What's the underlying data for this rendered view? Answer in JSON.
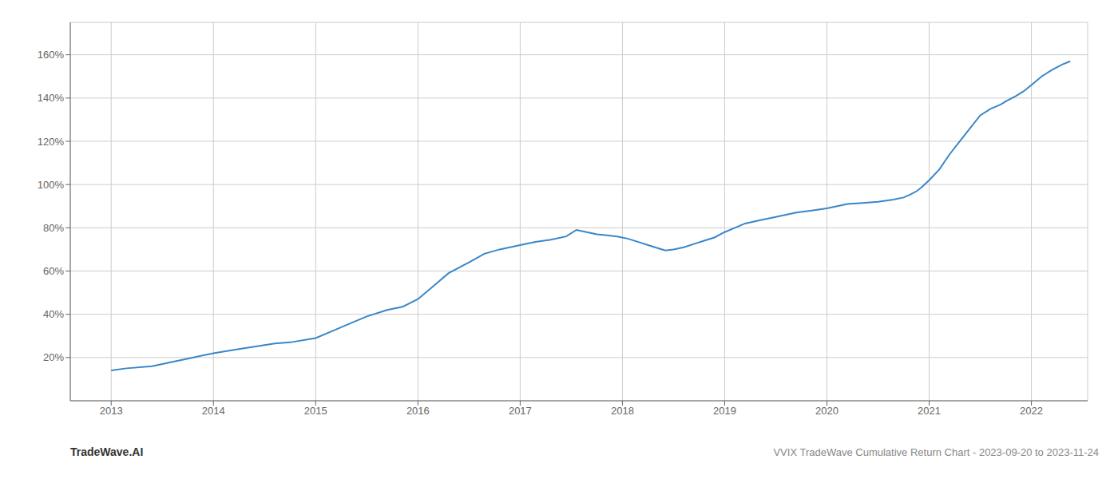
{
  "chart_data": {
    "type": "line",
    "title": "VVIX TradeWave Cumulative Return Chart - 2023-09-20 to 2023-11-24",
    "annotations": [
      "TradeWave.AI"
    ],
    "color": "#3a86c8",
    "grid": true,
    "xlim": [
      2012.6,
      2022.55
    ],
    "xticks": [
      2013,
      2014,
      2015,
      2016,
      2017,
      2018,
      2019,
      2020,
      2021,
      2022
    ],
    "ylim": [
      0,
      175
    ],
    "yticks": [
      {
        "value": 20,
        "label": "20%"
      },
      {
        "value": 40,
        "label": "40%"
      },
      {
        "value": 60,
        "label": "60%"
      },
      {
        "value": 80,
        "label": "80%"
      },
      {
        "value": 100,
        "label": "100%"
      },
      {
        "value": 120,
        "label": "120%"
      },
      {
        "value": 140,
        "label": "140%"
      },
      {
        "value": 160,
        "label": "160%"
      }
    ],
    "x": [
      2013.0,
      2013.15,
      2013.4,
      2013.6,
      2013.75,
      2014.0,
      2014.2,
      2014.4,
      2014.6,
      2014.75,
      2015.0,
      2015.15,
      2015.3,
      2015.5,
      2015.7,
      2015.85,
      2016.0,
      2016.15,
      2016.3,
      2016.5,
      2016.65,
      2016.8,
      2017.0,
      2017.15,
      2017.3,
      2017.45,
      2017.55,
      2017.65,
      2017.75,
      2017.85,
      2017.95,
      2018.05,
      2018.15,
      2018.25,
      2018.35,
      2018.42,
      2018.5,
      2018.6,
      2018.7,
      2018.8,
      2018.9,
      2019.0,
      2019.1,
      2019.2,
      2019.35,
      2019.5,
      2019.6,
      2019.7,
      2019.85,
      2020.0,
      2020.1,
      2020.2,
      2020.35,
      2020.5,
      2020.65,
      2020.75,
      2020.82,
      2020.88,
      2020.92,
      2021.0,
      2021.1,
      2021.2,
      2021.3,
      2021.4,
      2021.5,
      2021.6,
      2021.7,
      2021.75,
      2021.85,
      2021.92,
      2022.0,
      2022.1,
      2022.2,
      2022.3,
      2022.38
    ],
    "values": [
      14,
      15,
      16,
      18,
      19.5,
      22,
      23.5,
      25,
      26.5,
      27,
      29,
      32,
      35,
      39,
      42,
      43.5,
      47,
      53,
      59,
      64,
      68,
      70,
      72,
      73.5,
      74.5,
      76,
      79,
      78,
      77,
      76.5,
      76,
      75,
      73.5,
      72,
      70.5,
      69.5,
      70,
      71,
      72.5,
      74,
      75.5,
      78,
      80,
      82,
      83.5,
      85,
      86,
      87,
      88,
      89,
      90,
      91,
      91.5,
      92,
      93,
      94,
      95.5,
      97,
      98.5,
      102,
      107,
      114,
      120,
      126,
      132,
      135,
      137,
      138.5,
      141,
      143,
      146,
      150,
      153,
      155.5,
      157
    ]
  }
}
